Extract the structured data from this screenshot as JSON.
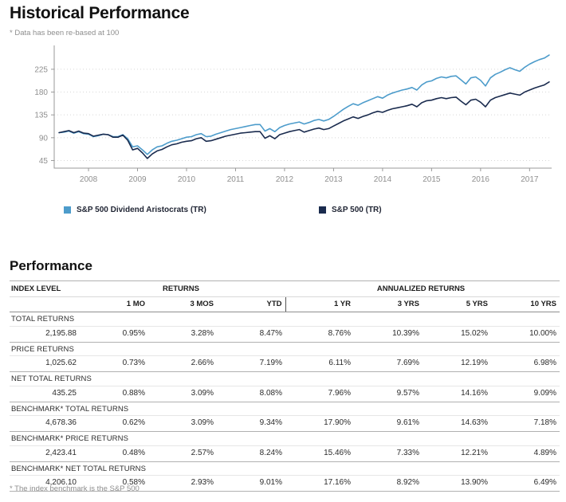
{
  "page": {
    "title": "Historical Performance",
    "subtitle": "* Data has been re-based at 100",
    "footnote": "* The index benchmark is the S&P 500"
  },
  "chart_data": {
    "type": "line",
    "title": "Historical Performance",
    "note": "* Data has been re-based at 100",
    "grid": "horizontal-dotted",
    "legend_position": "bottom",
    "x_range": [
      2007.3,
      2017.45
    ],
    "y_range": [
      30,
      272
    ],
    "x_ticks": [
      2008,
      2009,
      2010,
      2011,
      2012,
      2013,
      2014,
      2015,
      2016,
      2017
    ],
    "y_ticks": [
      45,
      90,
      135,
      180,
      225
    ],
    "x_start": 2007.4,
    "x_step": 0.1,
    "series": [
      {
        "name": "S&P 500 Dividend Aristocrats (TR)",
        "color": "#4D9CCB",
        "values": [
          100,
          101,
          103,
          99,
          102,
          98,
          97,
          92,
          94,
          97,
          96,
          92,
          92,
          96,
          88,
          72,
          74,
          66,
          57,
          66,
          72,
          74,
          79,
          83,
          85,
          88,
          91,
          92,
          96,
          98,
          92,
          93,
          97,
          100,
          103,
          106,
          108,
          110,
          112,
          114,
          116,
          116,
          103,
          108,
          102,
          110,
          114,
          117,
          119,
          121,
          117,
          120,
          124,
          126,
          123,
          126,
          132,
          139,
          146,
          152,
          157,
          154,
          159,
          163,
          167,
          171,
          168,
          174,
          178,
          181,
          184,
          186,
          189,
          184,
          194,
          200,
          202,
          207,
          210,
          208,
          211,
          212,
          204,
          196,
          208,
          210,
          203,
          192,
          208,
          215,
          219,
          224,
          228,
          224,
          221,
          229,
          235,
          240,
          244,
          247,
          253
        ]
      },
      {
        "name": "S&P 500 (TR)",
        "color": "#1A2B4E",
        "values": [
          100,
          102,
          104,
          100,
          103,
          99,
          98,
          93,
          95,
          97,
          96,
          91,
          91,
          95,
          85,
          66,
          69,
          60,
          49,
          58,
          64,
          67,
          72,
          76,
          78,
          81,
          83,
          84,
          88,
          90,
          83,
          84,
          87,
          90,
          93,
          95,
          97,
          99,
          100,
          101,
          102,
          102,
          89,
          94,
          88,
          96,
          99,
          102,
          104,
          106,
          101,
          104,
          107,
          109,
          106,
          108,
          113,
          118,
          123,
          127,
          131,
          128,
          132,
          135,
          139,
          142,
          140,
          144,
          147,
          149,
          151,
          153,
          156,
          151,
          159,
          163,
          164,
          167,
          169,
          167,
          169,
          170,
          162,
          155,
          164,
          166,
          160,
          151,
          164,
          169,
          172,
          175,
          178,
          176,
          174,
          180,
          184,
          188,
          191,
          194,
          200
        ]
      }
    ]
  },
  "performance": {
    "heading": "Performance",
    "header": {
      "index_level": "INDEX LEVEL",
      "returns": "RETURNS",
      "annualized_returns": "ANNUALIZED RETURNS",
      "periods": [
        "1 MO",
        "3 MOS",
        "YTD",
        "1 YR",
        "3 YRS",
        "5 YRS",
        "10 YRS"
      ]
    },
    "rows": [
      {
        "label": "TOTAL RETURNS",
        "index_level": "2,195.88",
        "values": [
          "0.95%",
          "3.28%",
          "8.47%",
          "8.76%",
          "10.39%",
          "15.02%",
          "10.00%"
        ]
      },
      {
        "label": "PRICE RETURNS",
        "index_level": "1,025.62",
        "values": [
          "0.73%",
          "2.66%",
          "7.19%",
          "6.11%",
          "7.69%",
          "12.19%",
          "6.98%"
        ]
      },
      {
        "label": "NET TOTAL RETURNS",
        "index_level": "435.25",
        "values": [
          "0.88%",
          "3.09%",
          "8.08%",
          "7.96%",
          "9.57%",
          "14.16%",
          "9.09%"
        ]
      },
      {
        "label": "BENCHMARK* TOTAL RETURNS",
        "index_level": "4,678.36",
        "values": [
          "0.62%",
          "3.09%",
          "9.34%",
          "17.90%",
          "9.61%",
          "14.63%",
          "7.18%"
        ]
      },
      {
        "label": "BENCHMARK* PRICE RETURNS",
        "index_level": "2,423.41",
        "values": [
          "0.48%",
          "2.57%",
          "8.24%",
          "15.46%",
          "7.33%",
          "12.21%",
          "4.89%"
        ]
      },
      {
        "label": "BENCHMARK* NET TOTAL RETURNS",
        "index_level": "4,206.10",
        "values": [
          "0.58%",
          "2.93%",
          "9.01%",
          "17.16%",
          "8.92%",
          "13.90%",
          "6.49%"
        ]
      }
    ]
  },
  "colors": {
    "series_light": "#4D9CCB",
    "series_dark": "#1A2B4E",
    "axis": "#999999",
    "grid": "#d8d8d8",
    "tick_label": "#8f8f8f"
  }
}
